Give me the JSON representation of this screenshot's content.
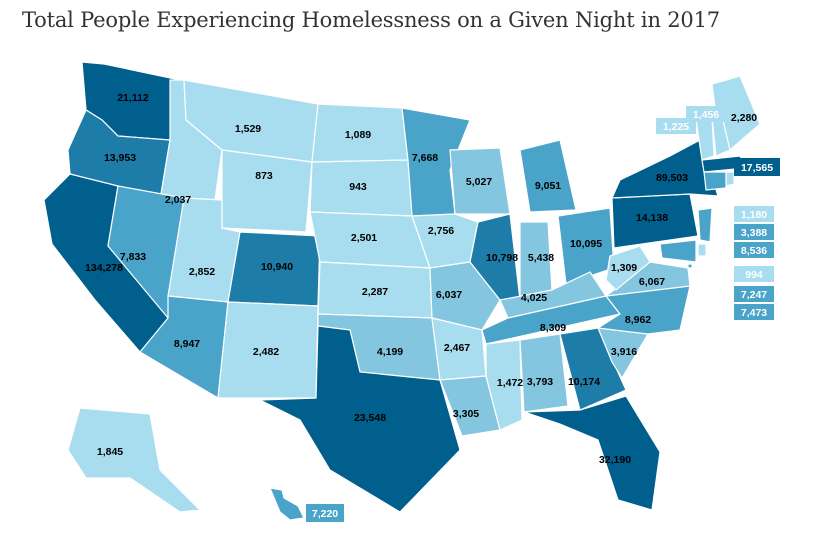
{
  "title": "Total People Experiencing Homelessness on a Given Night in 2017",
  "colors": {
    "tier1": "#a8ddf0",
    "tier2": "#84c5e0",
    "tier3": "#4aa3c8",
    "tier4": "#1d7da8",
    "tier5": "#005f8c"
  },
  "states": [
    {
      "name": "Washington",
      "value": "21,112",
      "tier": 5
    },
    {
      "name": "Oregon",
      "value": "13,953",
      "tier": 4
    },
    {
      "name": "California",
      "value": "134,278",
      "tier": 5
    },
    {
      "name": "Idaho",
      "value": "2,037",
      "tier": 1
    },
    {
      "name": "Nevada",
      "value": "7,833",
      "tier": 3
    },
    {
      "name": "Montana",
      "value": "1,529",
      "tier": 1
    },
    {
      "name": "Wyoming",
      "value": "873",
      "tier": 1
    },
    {
      "name": "Utah",
      "value": "2,852",
      "tier": 1
    },
    {
      "name": "Arizona",
      "value": "8,947",
      "tier": 3
    },
    {
      "name": "Colorado",
      "value": "10,940",
      "tier": 4
    },
    {
      "name": "New Mexico",
      "value": "2,482",
      "tier": 1
    },
    {
      "name": "North Dakota",
      "value": "1,089",
      "tier": 1
    },
    {
      "name": "South Dakota",
      "value": "943",
      "tier": 1
    },
    {
      "name": "Nebraska",
      "value": "2,501",
      "tier": 1
    },
    {
      "name": "Kansas",
      "value": "2,287",
      "tier": 1
    },
    {
      "name": "Oklahoma",
      "value": "4,199",
      "tier": 2
    },
    {
      "name": "Texas",
      "value": "23,548",
      "tier": 5
    },
    {
      "name": "Minnesota",
      "value": "7,668",
      "tier": 3
    },
    {
      "name": "Iowa",
      "value": "2,756",
      "tier": 1
    },
    {
      "name": "Missouri",
      "value": "6,037",
      "tier": 2
    },
    {
      "name": "Arkansas",
      "value": "2,467",
      "tier": 1
    },
    {
      "name": "Louisiana",
      "value": "3,305",
      "tier": 2
    },
    {
      "name": "Wisconsin",
      "value": "5,027",
      "tier": 2
    },
    {
      "name": "Illinois",
      "value": "10,798",
      "tier": 4
    },
    {
      "name": "Michigan",
      "value": "9,051",
      "tier": 3
    },
    {
      "name": "Indiana",
      "value": "5,438",
      "tier": 2
    },
    {
      "name": "Ohio",
      "value": "10,095",
      "tier": 3
    },
    {
      "name": "Kentucky",
      "value": "4,025",
      "tier": 2
    },
    {
      "name": "Tennessee",
      "value": "8,309",
      "tier": 3
    },
    {
      "name": "Mississippi",
      "value": "1,472",
      "tier": 1
    },
    {
      "name": "Alabama",
      "value": "3,793",
      "tier": 2
    },
    {
      "name": "Georgia",
      "value": "10,174",
      "tier": 4
    },
    {
      "name": "Florida",
      "value": "32,190",
      "tier": 5
    },
    {
      "name": "South Carolina",
      "value": "3,916",
      "tier": 2
    },
    {
      "name": "North Carolina",
      "value": "8,962",
      "tier": 3
    },
    {
      "name": "Virginia",
      "value": "6,067",
      "tier": 2
    },
    {
      "name": "West Virginia",
      "value": "1,309",
      "tier": 1
    },
    {
      "name": "Pennsylvania",
      "value": "14,138",
      "tier": 5
    },
    {
      "name": "New York",
      "value": "89,503",
      "tier": 5
    },
    {
      "name": "Maine",
      "value": "2,280",
      "tier": 1
    },
    {
      "name": "Vermont",
      "value": "1,225",
      "tier": 1
    },
    {
      "name": "New Hampshire",
      "value": "1,456",
      "tier": 1
    },
    {
      "name": "Massachusetts",
      "value": "17,565",
      "tier": 5
    },
    {
      "name": "Rhode Island",
      "value": "1,180",
      "tier": 1
    },
    {
      "name": "Connecticut",
      "value": "3,388",
      "tier": 3
    },
    {
      "name": "New Jersey",
      "value": "8,536",
      "tier": 3
    },
    {
      "name": "Delaware",
      "value": "994",
      "tier": 1
    },
    {
      "name": "Maryland",
      "value": "7,247",
      "tier": 3
    },
    {
      "name": "District of Columbia",
      "value": "7,473",
      "tier": 3
    },
    {
      "name": "Alaska",
      "value": "1,845",
      "tier": 1
    },
    {
      "name": "Hawaii",
      "value": "7,220",
      "tier": 3
    }
  ]
}
